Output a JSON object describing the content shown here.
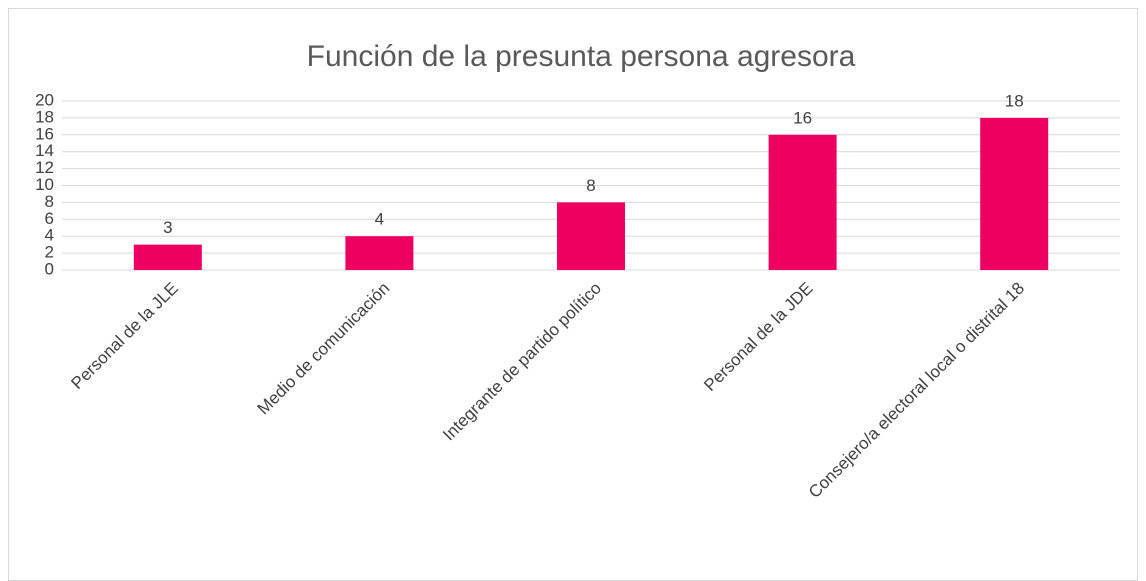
{
  "chart_data": {
    "type": "bar",
    "title": "Función de la presunta persona agresora",
    "categories": [
      "Personal de la JLE",
      "Medio de comunicación",
      "Integrante de partido político",
      "Personal de la JDE",
      "Consejero/a electoral local o distrital 18"
    ],
    "values": [
      3,
      4,
      8,
      16,
      18
    ],
    "color": "#ee0060",
    "ylim": [
      0,
      20
    ],
    "yticks": [
      0,
      2,
      4,
      6,
      8,
      10,
      12,
      14,
      16,
      18,
      20
    ],
    "grid": true,
    "data_labels": true
  }
}
